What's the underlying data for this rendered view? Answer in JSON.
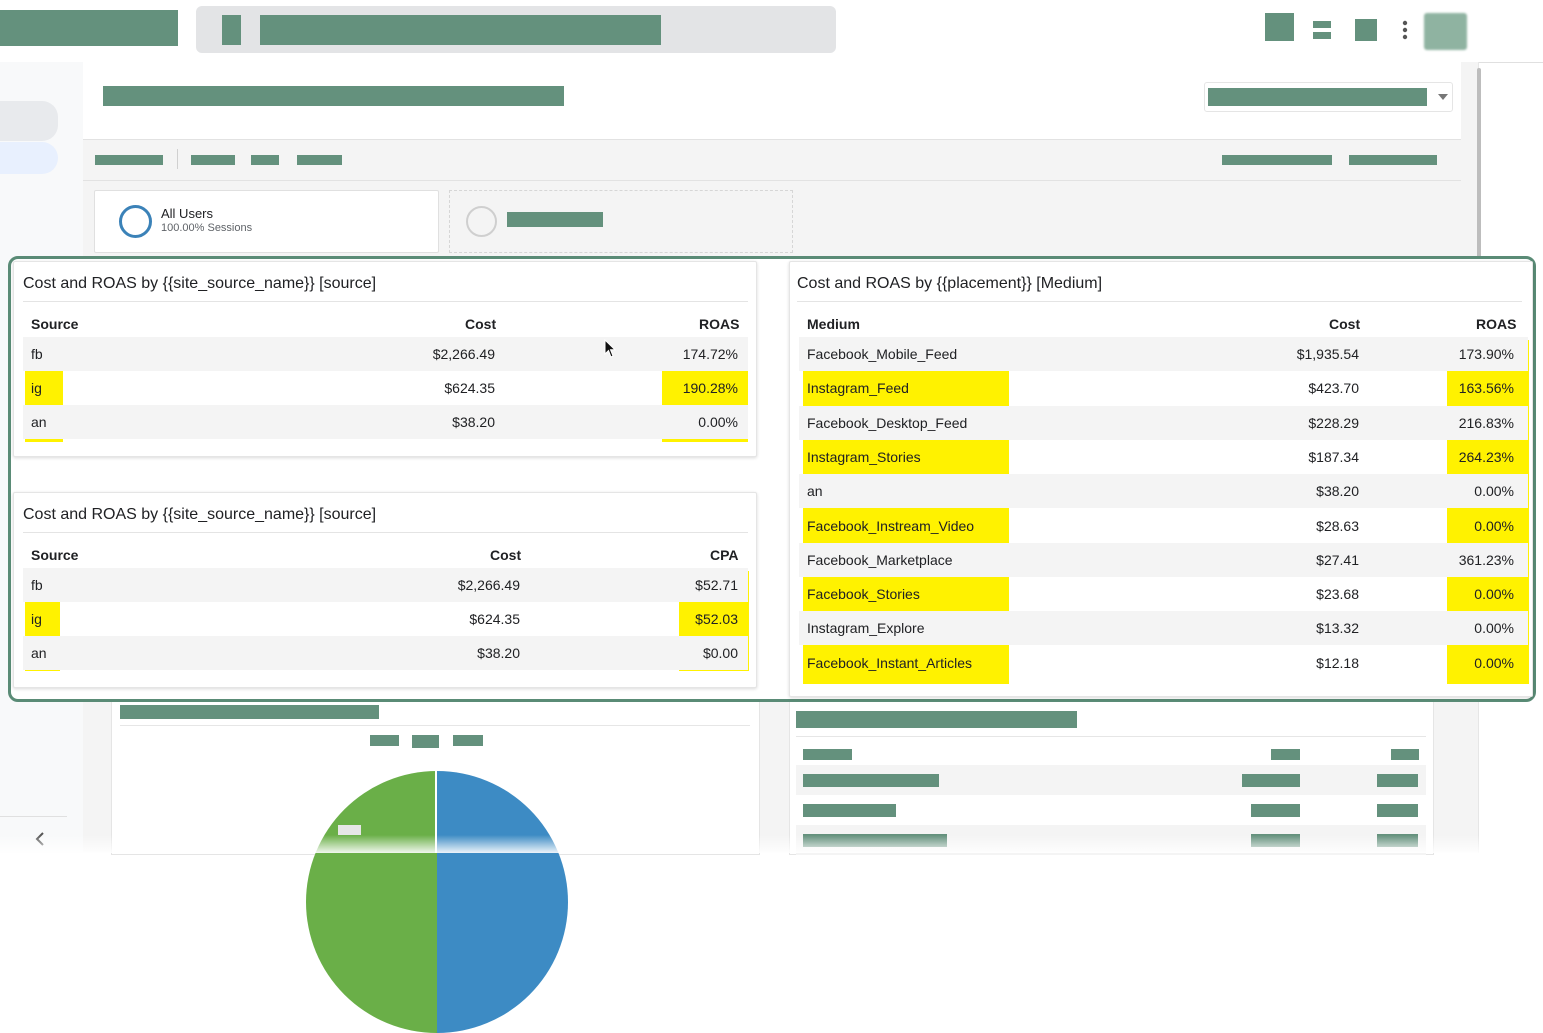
{
  "segments": {
    "active": {
      "name": "All Users",
      "detail": "100.00% Sessions"
    }
  },
  "cards": {
    "source_roas": {
      "title": "Cost and ROAS by {{site_source_name}} [source]",
      "headers": [
        "Source",
        "Cost",
        "ROAS"
      ],
      "rows": [
        {
          "source": "fb",
          "cost": "$2,266.49",
          "roas": "174.72%"
        },
        {
          "source": "ig",
          "cost": "$624.35",
          "roas": "190.28%"
        },
        {
          "source": "an",
          "cost": "$38.20",
          "roas": "0.00%"
        }
      ]
    },
    "source_cpa": {
      "title": "Cost and ROAS by {{site_source_name}} [source]",
      "headers": [
        "Source",
        "Cost",
        "CPA"
      ],
      "rows": [
        {
          "source": "fb",
          "cost": "$2,266.49",
          "cpa": "$52.71"
        },
        {
          "source": "ig",
          "cost": "$624.35",
          "cpa": "$52.03"
        },
        {
          "source": "an",
          "cost": "$38.20",
          "cpa": "$0.00"
        }
      ]
    },
    "placement_roas": {
      "title": "Cost and ROAS by {{placement}} [Medium]",
      "headers": [
        "Medium",
        "Cost",
        "ROAS"
      ],
      "rows": [
        {
          "medium": "Facebook_Mobile_Feed",
          "cost": "$1,935.54",
          "roas": "173.90%"
        },
        {
          "medium": "Instagram_Feed",
          "cost": "$423.70",
          "roas": "163.56%"
        },
        {
          "medium": "Facebook_Desktop_Feed",
          "cost": "$228.29",
          "roas": "216.83%"
        },
        {
          "medium": "Instagram_Stories",
          "cost": "$187.34",
          "roas": "264.23%"
        },
        {
          "medium": "an",
          "cost": "$38.20",
          "roas": "0.00%"
        },
        {
          "medium": "Facebook_Instream_Video",
          "cost": "$28.63",
          "roas": "0.00%"
        },
        {
          "medium": "Facebook_Marketplace",
          "cost": "$27.41",
          "roas": "361.23%"
        },
        {
          "medium": "Facebook_Stories",
          "cost": "$23.68",
          "roas": "0.00%"
        },
        {
          "medium": "Instagram_Explore",
          "cost": "$13.32",
          "roas": "0.00%"
        },
        {
          "medium": "Facebook_Instant_Articles",
          "cost": "$12.18",
          "roas": "0.00%"
        }
      ]
    }
  },
  "icons": {
    "back": "chevron-left-icon",
    "more": "more-vert-icon",
    "cursor": "mouse-pointer-icon"
  },
  "colors": {
    "redaction": "#64917d",
    "highlight": "#fff200",
    "frame": "#5a8b76",
    "pie_blue": "#3d8bc4",
    "pie_green": "#6aaf48"
  }
}
